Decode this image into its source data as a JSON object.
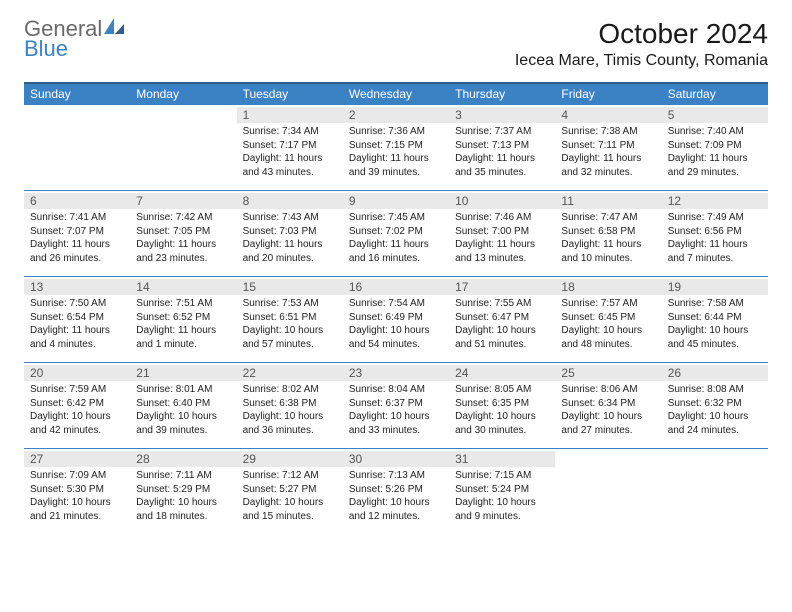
{
  "brand": {
    "word1": "General",
    "word2": "Blue",
    "accent_color": "#3b82c4",
    "grey": "#6a6a6a"
  },
  "title": "October 2024",
  "location": "Iecea Mare, Timis County, Romania",
  "day_headers": [
    "Sunday",
    "Monday",
    "Tuesday",
    "Wednesday",
    "Thursday",
    "Friday",
    "Saturday"
  ],
  "colors": {
    "header_bg": "#3b82c4",
    "header_border": "#2f5e8a",
    "row_border": "#3b82c4",
    "daynum_bg": "#e9e9e9",
    "text": "#222222"
  },
  "weeks": [
    [
      null,
      null,
      {
        "n": "1",
        "sr": "Sunrise: 7:34 AM",
        "ss": "Sunset: 7:17 PM",
        "dl": "Daylight: 11 hours and 43 minutes."
      },
      {
        "n": "2",
        "sr": "Sunrise: 7:36 AM",
        "ss": "Sunset: 7:15 PM",
        "dl": "Daylight: 11 hours and 39 minutes."
      },
      {
        "n": "3",
        "sr": "Sunrise: 7:37 AM",
        "ss": "Sunset: 7:13 PM",
        "dl": "Daylight: 11 hours and 35 minutes."
      },
      {
        "n": "4",
        "sr": "Sunrise: 7:38 AM",
        "ss": "Sunset: 7:11 PM",
        "dl": "Daylight: 11 hours and 32 minutes."
      },
      {
        "n": "5",
        "sr": "Sunrise: 7:40 AM",
        "ss": "Sunset: 7:09 PM",
        "dl": "Daylight: 11 hours and 29 minutes."
      }
    ],
    [
      {
        "n": "6",
        "sr": "Sunrise: 7:41 AM",
        "ss": "Sunset: 7:07 PM",
        "dl": "Daylight: 11 hours and 26 minutes."
      },
      {
        "n": "7",
        "sr": "Sunrise: 7:42 AM",
        "ss": "Sunset: 7:05 PM",
        "dl": "Daylight: 11 hours and 23 minutes."
      },
      {
        "n": "8",
        "sr": "Sunrise: 7:43 AM",
        "ss": "Sunset: 7:03 PM",
        "dl": "Daylight: 11 hours and 20 minutes."
      },
      {
        "n": "9",
        "sr": "Sunrise: 7:45 AM",
        "ss": "Sunset: 7:02 PM",
        "dl": "Daylight: 11 hours and 16 minutes."
      },
      {
        "n": "10",
        "sr": "Sunrise: 7:46 AM",
        "ss": "Sunset: 7:00 PM",
        "dl": "Daylight: 11 hours and 13 minutes."
      },
      {
        "n": "11",
        "sr": "Sunrise: 7:47 AM",
        "ss": "Sunset: 6:58 PM",
        "dl": "Daylight: 11 hours and 10 minutes."
      },
      {
        "n": "12",
        "sr": "Sunrise: 7:49 AM",
        "ss": "Sunset: 6:56 PM",
        "dl": "Daylight: 11 hours and 7 minutes."
      }
    ],
    [
      {
        "n": "13",
        "sr": "Sunrise: 7:50 AM",
        "ss": "Sunset: 6:54 PM",
        "dl": "Daylight: 11 hours and 4 minutes."
      },
      {
        "n": "14",
        "sr": "Sunrise: 7:51 AM",
        "ss": "Sunset: 6:52 PM",
        "dl": "Daylight: 11 hours and 1 minute."
      },
      {
        "n": "15",
        "sr": "Sunrise: 7:53 AM",
        "ss": "Sunset: 6:51 PM",
        "dl": "Daylight: 10 hours and 57 minutes."
      },
      {
        "n": "16",
        "sr": "Sunrise: 7:54 AM",
        "ss": "Sunset: 6:49 PM",
        "dl": "Daylight: 10 hours and 54 minutes."
      },
      {
        "n": "17",
        "sr": "Sunrise: 7:55 AM",
        "ss": "Sunset: 6:47 PM",
        "dl": "Daylight: 10 hours and 51 minutes."
      },
      {
        "n": "18",
        "sr": "Sunrise: 7:57 AM",
        "ss": "Sunset: 6:45 PM",
        "dl": "Daylight: 10 hours and 48 minutes."
      },
      {
        "n": "19",
        "sr": "Sunrise: 7:58 AM",
        "ss": "Sunset: 6:44 PM",
        "dl": "Daylight: 10 hours and 45 minutes."
      }
    ],
    [
      {
        "n": "20",
        "sr": "Sunrise: 7:59 AM",
        "ss": "Sunset: 6:42 PM",
        "dl": "Daylight: 10 hours and 42 minutes."
      },
      {
        "n": "21",
        "sr": "Sunrise: 8:01 AM",
        "ss": "Sunset: 6:40 PM",
        "dl": "Daylight: 10 hours and 39 minutes."
      },
      {
        "n": "22",
        "sr": "Sunrise: 8:02 AM",
        "ss": "Sunset: 6:38 PM",
        "dl": "Daylight: 10 hours and 36 minutes."
      },
      {
        "n": "23",
        "sr": "Sunrise: 8:04 AM",
        "ss": "Sunset: 6:37 PM",
        "dl": "Daylight: 10 hours and 33 minutes."
      },
      {
        "n": "24",
        "sr": "Sunrise: 8:05 AM",
        "ss": "Sunset: 6:35 PM",
        "dl": "Daylight: 10 hours and 30 minutes."
      },
      {
        "n": "25",
        "sr": "Sunrise: 8:06 AM",
        "ss": "Sunset: 6:34 PM",
        "dl": "Daylight: 10 hours and 27 minutes."
      },
      {
        "n": "26",
        "sr": "Sunrise: 8:08 AM",
        "ss": "Sunset: 6:32 PM",
        "dl": "Daylight: 10 hours and 24 minutes."
      }
    ],
    [
      {
        "n": "27",
        "sr": "Sunrise: 7:09 AM",
        "ss": "Sunset: 5:30 PM",
        "dl": "Daylight: 10 hours and 21 minutes."
      },
      {
        "n": "28",
        "sr": "Sunrise: 7:11 AM",
        "ss": "Sunset: 5:29 PM",
        "dl": "Daylight: 10 hours and 18 minutes."
      },
      {
        "n": "29",
        "sr": "Sunrise: 7:12 AM",
        "ss": "Sunset: 5:27 PM",
        "dl": "Daylight: 10 hours and 15 minutes."
      },
      {
        "n": "30",
        "sr": "Sunrise: 7:13 AM",
        "ss": "Sunset: 5:26 PM",
        "dl": "Daylight: 10 hours and 12 minutes."
      },
      {
        "n": "31",
        "sr": "Sunrise: 7:15 AM",
        "ss": "Sunset: 5:24 PM",
        "dl": "Daylight: 10 hours and 9 minutes."
      },
      null,
      null
    ]
  ]
}
